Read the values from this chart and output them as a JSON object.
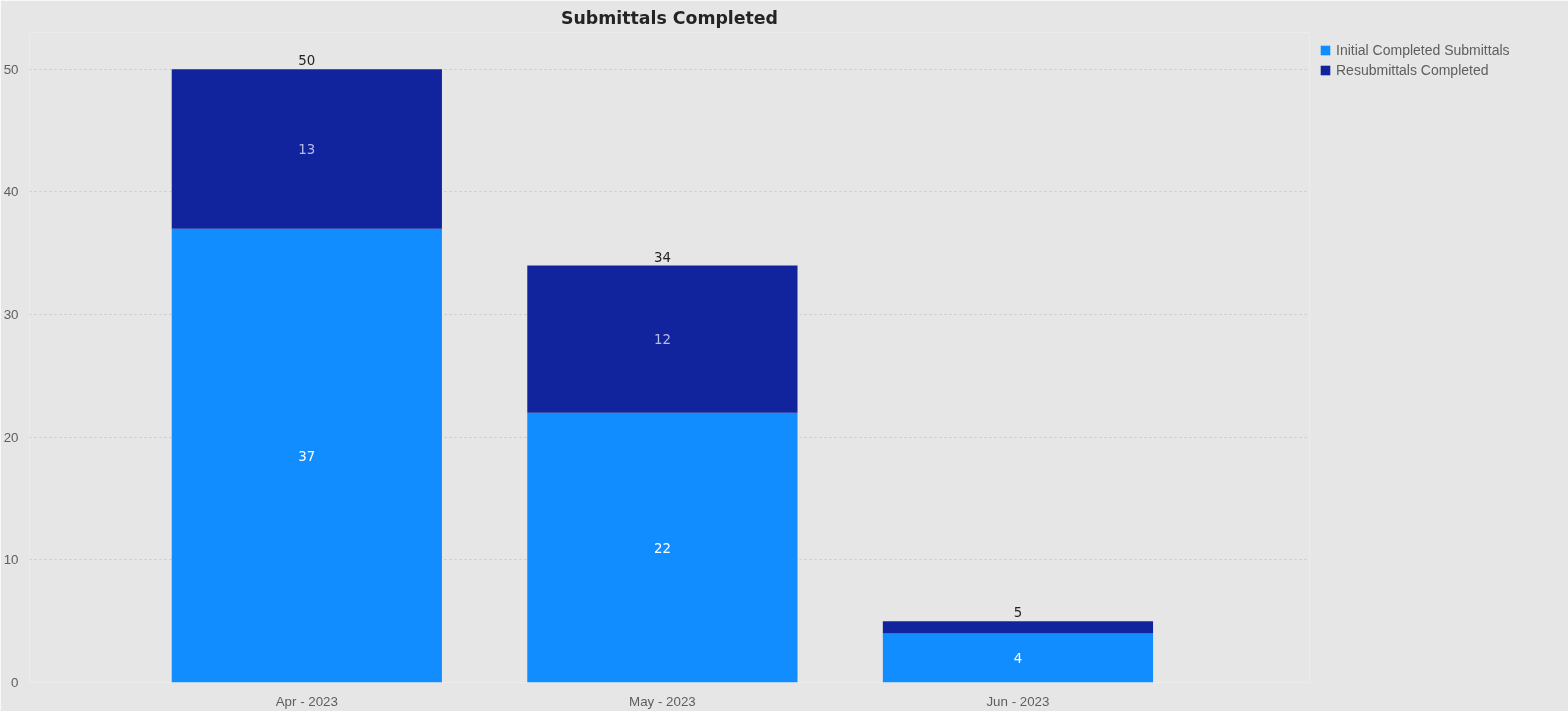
{
  "chart_data": {
    "type": "bar",
    "title": "Submittals Completed",
    "categories": [
      "Apr - 2023",
      "May - 2023",
      "Jun - 2023"
    ],
    "stacked": true,
    "series": [
      {
        "name": "Initial Completed Submittals",
        "color": "#118dff",
        "values": [
          37,
          22,
          4
        ],
        "value_labels": [
          "37",
          "22",
          "4"
        ]
      },
      {
        "name": "Resubmittals Completed",
        "color": "#12239e",
        "values": [
          13,
          12,
          1
        ],
        "value_labels": [
          "13",
          "12",
          null
        ]
      }
    ],
    "totals": [
      "50",
      "34",
      "5"
    ],
    "ylim": [
      0,
      53
    ],
    "yticks": [
      0,
      10,
      20,
      30,
      40,
      50
    ],
    "grid": "y",
    "legend": "top right"
  }
}
